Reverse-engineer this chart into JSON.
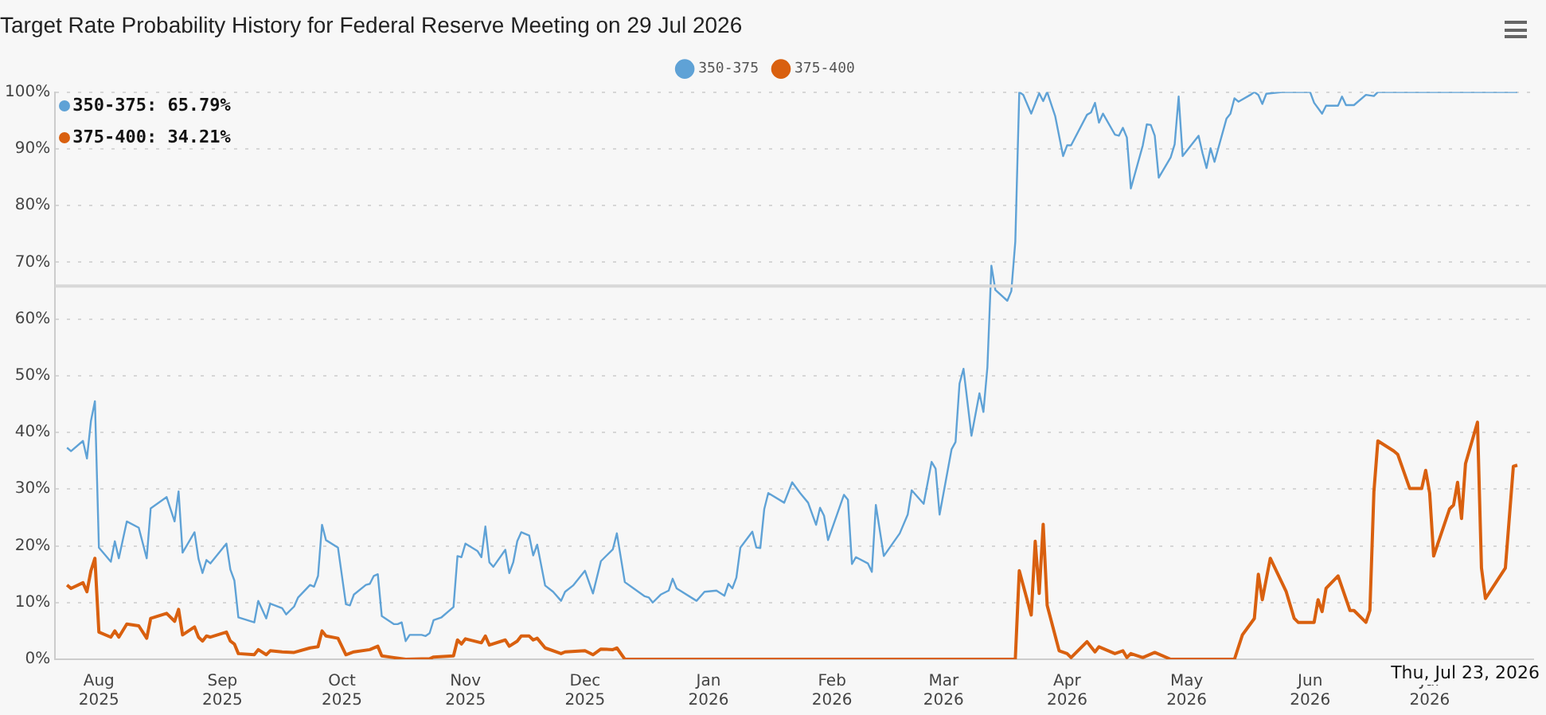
{
  "chart_data": {
    "type": "line",
    "title": "Target Rate Probability History for Federal Reserve Meeting on 29 Jul 2026",
    "legend": "top",
    "grid": "y",
    "marker": "none",
    "line_style": "solid",
    "xlim": [
      "2025-07-21",
      "2026-07-27"
    ],
    "xticks": [
      {
        "value": "2025-08-01",
        "label": "Aug 2025"
      },
      {
        "value": "2025-09-01",
        "label": "Sep 2025"
      },
      {
        "value": "2025-10-01",
        "label": "Oct 2025"
      },
      {
        "value": "2025-11-01",
        "label": "Nov 2025"
      },
      {
        "value": "2025-12-01",
        "label": "Dec 2025"
      },
      {
        "value": "2026-01-01",
        "label": "Jan 2026"
      },
      {
        "value": "2026-02-01",
        "label": "Feb 2026"
      },
      {
        "value": "2026-03-01",
        "label": "Mar 2026"
      },
      {
        "value": "2026-04-01",
        "label": "Apr 2026"
      },
      {
        "value": "2026-05-01",
        "label": "May 2026"
      },
      {
        "value": "2026-06-01",
        "label": "Jun 2026"
      },
      {
        "value": "2026-07-01",
        "label": "Jul 2026"
      }
    ],
    "ylim": [
      0,
      100
    ],
    "yticks": [
      {
        "value": 0,
        "label": "0%"
      },
      {
        "value": 10,
        "label": "10%"
      },
      {
        "value": 20,
        "label": "20%"
      },
      {
        "value": 30,
        "label": "30%"
      },
      {
        "value": 40,
        "label": "40%"
      },
      {
        "value": 50,
        "label": "50%"
      },
      {
        "value": 60,
        "label": "60%"
      },
      {
        "value": 70,
        "label": "70%"
      },
      {
        "value": 80,
        "label": "80%"
      },
      {
        "value": 90,
        "label": "90%"
      },
      {
        "value": 100,
        "label": "100%"
      }
    ],
    "ref_lines": [
      {
        "axis": "y",
        "value": 65.79,
        "label": null,
        "color": "#d8d8d8"
      }
    ],
    "annotations": [
      "350-375: 65.79%",
      "375-400: 34.21%",
      "Thu, Jul 23, 2026"
    ],
    "series": [
      {
        "name": "350-375",
        "color": "#5fa2d6",
        "x": [
          "2025-07-24",
          "2025-07-25",
          "2025-07-28",
          "2025-07-29",
          "2025-07-30",
          "2025-07-31",
          "2025-08-01",
          "2025-08-04",
          "2025-08-05",
          "2025-08-06",
          "2025-08-08",
          "2025-08-11",
          "2025-08-13",
          "2025-08-14",
          "2025-08-18",
          "2025-08-20",
          "2025-08-21",
          "2025-08-22",
          "2025-08-25",
          "2025-08-26",
          "2025-08-27",
          "2025-08-28",
          "2025-08-29",
          "2025-09-02",
          "2025-09-03",
          "2025-09-04",
          "2025-09-05",
          "2025-09-09",
          "2025-09-10",
          "2025-09-12",
          "2025-09-13",
          "2025-09-16",
          "2025-09-17",
          "2025-09-19",
          "2025-09-20",
          "2025-09-23",
          "2025-09-24",
          "2025-09-25",
          "2025-09-26",
          "2025-09-27",
          "2025-09-30",
          "2025-10-02",
          "2025-10-03",
          "2025-10-04",
          "2025-10-07",
          "2025-10-08",
          "2025-10-09",
          "2025-10-10",
          "2025-10-11",
          "2025-10-14",
          "2025-10-15",
          "2025-10-16",
          "2025-10-17",
          "2025-10-18",
          "2025-10-21",
          "2025-10-22",
          "2025-10-23",
          "2025-10-24",
          "2025-10-26",
          "2025-10-29",
          "2025-10-30",
          "2025-10-31",
          "2025-11-01",
          "2025-11-04",
          "2025-11-05",
          "2025-11-06",
          "2025-11-07",
          "2025-11-08",
          "2025-11-11",
          "2025-11-12",
          "2025-11-13",
          "2025-11-14",
          "2025-11-15",
          "2025-11-17",
          "2025-11-18",
          "2025-11-19",
          "2025-11-21",
          "2025-11-23",
          "2025-11-25",
          "2025-11-26",
          "2025-11-28",
          "2025-12-01",
          "2025-12-03",
          "2025-12-05",
          "2025-12-08",
          "2025-12-09",
          "2025-12-11",
          "2025-12-13",
          "2025-12-16",
          "2025-12-17",
          "2025-12-18",
          "2025-12-20",
          "2025-12-22",
          "2025-12-23",
          "2025-12-24",
          "2025-12-29",
          "2025-12-31",
          "2026-01-03",
          "2026-01-05",
          "2026-01-06",
          "2026-01-07",
          "2026-01-08",
          "2026-01-09",
          "2026-01-12",
          "2026-01-13",
          "2026-01-14",
          "2026-01-15",
          "2026-01-16",
          "2026-01-20",
          "2026-01-22",
          "2026-01-24",
          "2026-01-26",
          "2026-01-28",
          "2026-01-29",
          "2026-01-30",
          "2026-01-31",
          "2026-02-04",
          "2026-02-05",
          "2026-02-06",
          "2026-02-07",
          "2026-02-10",
          "2026-02-11",
          "2026-02-12",
          "2026-02-14",
          "2026-02-18",
          "2026-02-20",
          "2026-02-21",
          "2026-02-24",
          "2026-02-26",
          "2026-02-27",
          "2026-02-28",
          "2026-03-03",
          "2026-03-04",
          "2026-03-05",
          "2026-03-06",
          "2026-03-08",
          "2026-03-10",
          "2026-03-11",
          "2026-03-12",
          "2026-03-13",
          "2026-03-14",
          "2026-03-17",
          "2026-03-18",
          "2026-03-19",
          "2026-03-20",
          "2026-03-21",
          "2026-03-23",
          "2026-03-25",
          "2026-03-26",
          "2026-03-27",
          "2026-03-29",
          "2026-03-31",
          "2026-04-01",
          "2026-04-02",
          "2026-04-06",
          "2026-04-07",
          "2026-04-08",
          "2026-04-09",
          "2026-04-10",
          "2026-04-13",
          "2026-04-14",
          "2026-04-15",
          "2026-04-16",
          "2026-04-17",
          "2026-04-20",
          "2026-04-21",
          "2026-04-22",
          "2026-04-23",
          "2026-04-24",
          "2026-04-27",
          "2026-04-28",
          "2026-04-29",
          "2026-04-30",
          "2026-05-04",
          "2026-05-05",
          "2026-05-06",
          "2026-05-07",
          "2026-05-08",
          "2026-05-11",
          "2026-05-12",
          "2026-05-13",
          "2026-05-14",
          "2026-05-17",
          "2026-05-18",
          "2026-05-19",
          "2026-05-20",
          "2026-05-21",
          "2026-05-25",
          "2026-05-28",
          "2026-06-01",
          "2026-06-02",
          "2026-06-04",
          "2026-06-05",
          "2026-06-08",
          "2026-06-09",
          "2026-06-10",
          "2026-06-12",
          "2026-06-15",
          "2026-06-17",
          "2026-06-18",
          "2026-07-23"
        ],
        "values": [
          37.3,
          36.7,
          38.5,
          35.4,
          42,
          45.5,
          19.7,
          17.2,
          20.8,
          17.8,
          24.3,
          23.2,
          17.8,
          26.6,
          28.6,
          24.3,
          29.6,
          18.8,
          22.4,
          17.7,
          15.2,
          17.5,
          16.9,
          20.4,
          15.8,
          13.9,
          7.4,
          6.5,
          10.3,
          7.2,
          9.8,
          9,
          7.9,
          9.3,
          10.9,
          13.1,
          12.8,
          14.7,
          23.7,
          21,
          19.7,
          9.7,
          9.5,
          11.4,
          13.1,
          13.3,
          14.7,
          15,
          7.6,
          6.2,
          6.2,
          6.5,
          3.2,
          4.3,
          4.3,
          4.1,
          4.6,
          6.9,
          7.4,
          9.2,
          18.2,
          18,
          20.4,
          19.1,
          18,
          23.4,
          17.1,
          16.3,
          19.3,
          15.2,
          17.1,
          20.8,
          22.4,
          21.8,
          18.3,
          20.2,
          13,
          11.9,
          10.3,
          11.9,
          13,
          15.6,
          11.6,
          17.3,
          19.4,
          22.2,
          13.6,
          12.6,
          11.1,
          10.9,
          10,
          11.4,
          12.1,
          14.2,
          12.5,
          10.3,
          11.9,
          12.1,
          11.2,
          13.3,
          12.5,
          14.4,
          19.7,
          22.5,
          19.7,
          19.6,
          26.5,
          29.3,
          27.6,
          31.2,
          29.3,
          27.6,
          23.7,
          26.7,
          25.3,
          21,
          29,
          28.1,
          16.8,
          18,
          16.9,
          15.4,
          27.2,
          18.2,
          22.2,
          25.5,
          29.8,
          27.4,
          34.8,
          33.6,
          25.5,
          37,
          38.3,
          48.6,
          51.2,
          39.4,
          46.9,
          43.6,
          51.5,
          69.4,
          65.1,
          63.2,
          64.9,
          73.6,
          100,
          99.5,
          96.2,
          99.8,
          98.4,
          100,
          95.8,
          88.7,
          90.6,
          90.6,
          96,
          96.4,
          98.1,
          94.6,
          96.2,
          92.5,
          92.3,
          93.7,
          92,
          83,
          90.6,
          94.3,
          94.2,
          92.3,
          84.9,
          88.5,
          90.8,
          99.2,
          88.7,
          92.3,
          89.2,
          86.6,
          90.1,
          87.7,
          95.3,
          96.2,
          98.9,
          98.3,
          99.5,
          100,
          99.5,
          97.9,
          99.7,
          100,
          100,
          100,
          98.1,
          96.2,
          97.6,
          97.6,
          99.2,
          97.7,
          97.7,
          99.5,
          99.3,
          100,
          100
        ]
      },
      {
        "name": "375-400",
        "color": "#d9600f",
        "x": [
          "2025-07-24",
          "2025-07-25",
          "2025-07-28",
          "2025-07-29",
          "2025-07-30",
          "2025-07-31",
          "2025-08-01",
          "2025-08-04",
          "2025-08-05",
          "2025-08-06",
          "2025-08-08",
          "2025-08-11",
          "2025-08-13",
          "2025-08-14",
          "2025-08-18",
          "2025-08-20",
          "2025-08-21",
          "2025-08-22",
          "2025-08-25",
          "2025-08-26",
          "2025-08-27",
          "2025-08-28",
          "2025-08-29",
          "2025-09-02",
          "2025-09-03",
          "2025-09-04",
          "2025-09-05",
          "2025-09-09",
          "2025-09-10",
          "2025-09-12",
          "2025-09-13",
          "2025-09-16",
          "2025-09-19",
          "2025-09-23",
          "2025-09-25",
          "2025-09-26",
          "2025-09-27",
          "2025-09-30",
          "2025-10-02",
          "2025-10-04",
          "2025-10-08",
          "2025-10-10",
          "2025-10-11",
          "2025-10-14",
          "2025-10-17",
          "2025-10-23",
          "2025-10-24",
          "2025-10-29",
          "2025-10-30",
          "2025-10-31",
          "2025-11-01",
          "2025-11-05",
          "2025-11-06",
          "2025-11-07",
          "2025-11-11",
          "2025-11-12",
          "2025-11-14",
          "2025-11-15",
          "2025-11-17",
          "2025-11-18",
          "2025-11-19",
          "2025-11-21",
          "2025-11-25",
          "2025-11-26",
          "2025-12-01",
          "2025-12-03",
          "2025-12-05",
          "2025-12-08",
          "2025-12-09",
          "2025-12-11",
          "2026-03-19",
          "2026-03-20",
          "2026-03-23",
          "2026-03-24",
          "2026-03-25",
          "2026-03-26",
          "2026-03-27",
          "2026-03-30",
          "2026-04-01",
          "2026-04-02",
          "2026-04-06",
          "2026-04-08",
          "2026-04-09",
          "2026-04-13",
          "2026-04-15",
          "2026-04-16",
          "2026-04-17",
          "2026-04-20",
          "2026-04-23",
          "2026-04-27",
          "2026-05-13",
          "2026-05-15",
          "2026-05-18",
          "2026-05-19",
          "2026-05-20",
          "2026-05-22",
          "2026-05-26",
          "2026-05-28",
          "2026-05-29",
          "2026-06-02",
          "2026-06-03",
          "2026-06-04",
          "2026-06-05",
          "2026-06-08",
          "2026-06-11",
          "2026-06-12",
          "2026-06-15",
          "2026-06-16",
          "2026-06-17",
          "2026-06-18",
          "2026-06-22",
          "2026-06-23",
          "2026-06-26",
          "2026-06-29",
          "2026-06-30",
          "2026-07-01",
          "2026-07-02",
          "2026-07-06",
          "2026-07-07",
          "2026-07-08",
          "2026-07-09",
          "2026-07-10",
          "2026-07-13",
          "2026-07-14",
          "2026-07-15",
          "2026-07-20",
          "2026-07-22",
          "2026-07-23"
        ],
        "values": [
          13.1,
          12.5,
          13.5,
          11.9,
          15.6,
          17.8,
          4.8,
          3.9,
          5,
          3.9,
          6.2,
          5.9,
          3.7,
          7.2,
          8.1,
          6.7,
          8.8,
          4.3,
          5.7,
          3.9,
          3.2,
          4.1,
          3.9,
          4.8,
          3.2,
          2.7,
          1,
          0.8,
          1.7,
          0.8,
          1.5,
          1.3,
          1.2,
          2,
          2.2,
          5,
          4.1,
          3.7,
          0.8,
          1.3,
          1.7,
          2.3,
          0.6,
          0.3,
          0,
          0.1,
          0.4,
          0.6,
          3.4,
          2.7,
          3.6,
          2.9,
          4.1,
          2.5,
          3.4,
          2.3,
          3.2,
          4.1,
          4.1,
          3.4,
          3.7,
          2,
          1,
          1.3,
          1.5,
          0.8,
          1.8,
          1.7,
          2,
          0,
          0,
          15.6,
          7.8,
          20.8,
          11.6,
          23.8,
          9.5,
          1.5,
          1,
          0.3,
          3.1,
          1.3,
          2.2,
          1,
          1.5,
          0.3,
          1,
          0.3,
          1.2,
          0,
          0,
          4.3,
          7.2,
          15,
          10.5,
          17.8,
          11.9,
          7.2,
          6.5,
          6.5,
          10.5,
          8.4,
          12.5,
          14.7,
          8.6,
          8.6,
          6.5,
          8.6,
          29.5,
          38.5,
          36.7,
          36.1,
          30.1,
          30.1,
          33.3,
          29.3,
          18.2,
          26.5,
          27.2,
          31.2,
          24.8,
          34.5,
          41.8,
          16.1,
          10.7,
          16.1,
          34,
          34.21
        ]
      }
    ]
  }
}
